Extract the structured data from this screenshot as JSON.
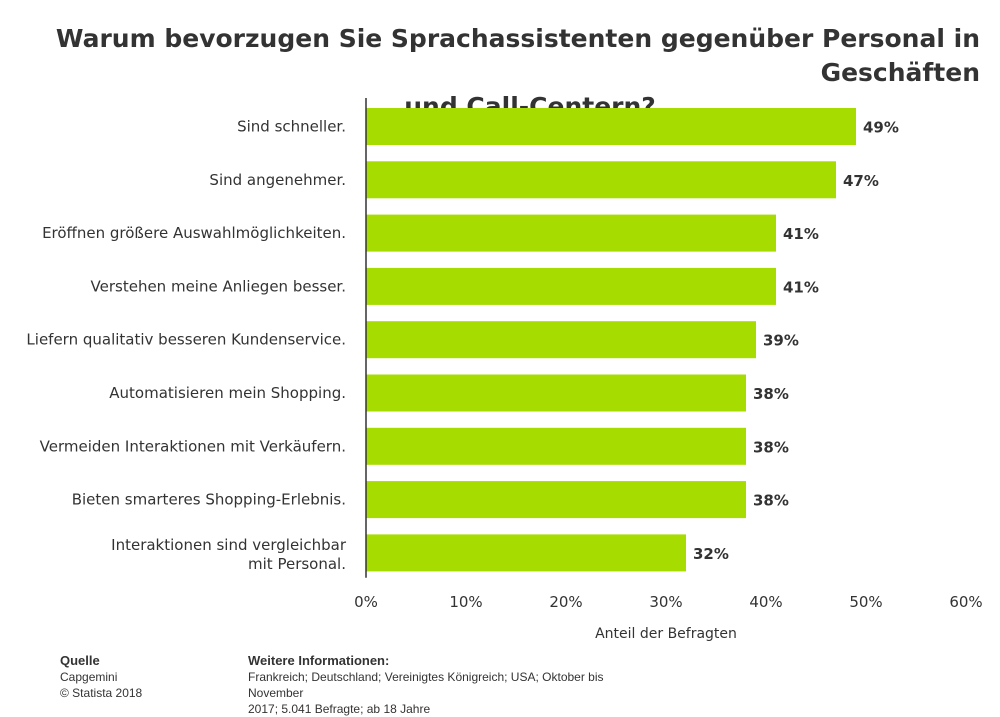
{
  "title_lines": [
    "Warum bevorzugen Sie Sprachassistenten gegenüber Personal in Geschäften",
    "und Call-Centern?"
  ],
  "colors": {
    "bar": "#a6dc00",
    "axis": "#333333",
    "text": "#333333"
  },
  "chart_data": {
    "type": "bar",
    "orientation": "horizontal",
    "categories": [
      "Sind schneller.",
      "Sind angenehmer.",
      "Eröffnen größere Auswahlmöglichkeiten.",
      "Verstehen meine Anliegen besser.",
      "Liefern qualitativ besseren Kundenservice.",
      "Automatisieren mein Shopping.",
      "Vermeiden Interaktionen mit Verkäufern.",
      "Bieten smarteres Shopping-Erlebnis.",
      "Interaktionen sind vergleichbar mit Personal."
    ],
    "values": [
      49,
      47,
      41,
      41,
      39,
      38,
      38,
      38,
      32
    ],
    "value_labels": [
      "49%",
      "47%",
      "41%",
      "41%",
      "39%",
      "38%",
      "38%",
      "38%",
      "32%"
    ],
    "xlim": [
      0,
      60
    ],
    "xticks": [
      "0%",
      "10%",
      "20%",
      "30%",
      "40%",
      "50%",
      "60%"
    ],
    "xlabel": "Anteil der Befragten",
    "grid": false
  },
  "footer": {
    "source_heading": "Quelle",
    "source_lines": [
      "Capgemini",
      "© Statista 2018"
    ],
    "info_heading": "Weitere Informationen:",
    "info_lines": [
      "Frankreich; Deutschland; Vereinigtes Königreich; USA; Oktober bis November",
      "2017; 5.041 Befragte; ab 18 Jahre"
    ]
  }
}
